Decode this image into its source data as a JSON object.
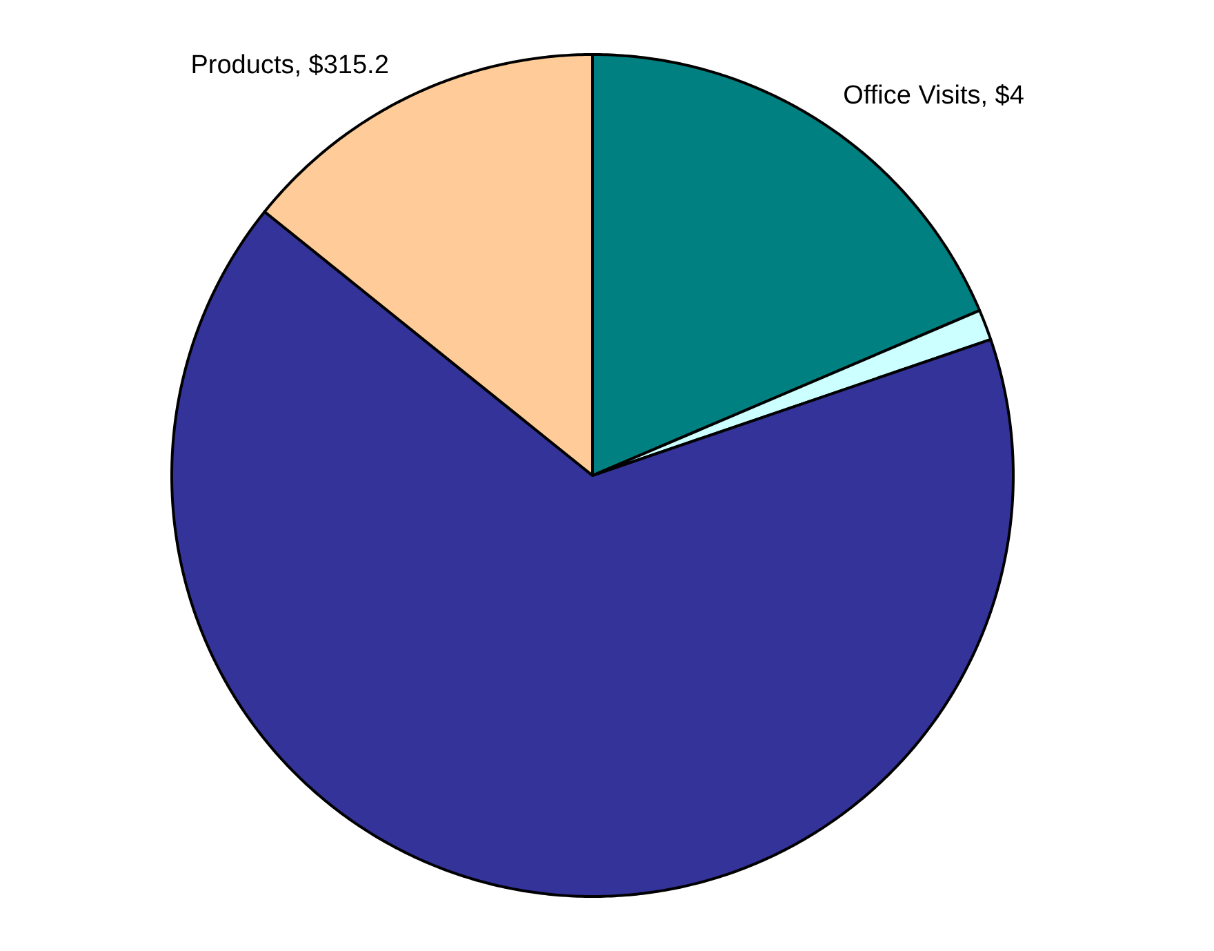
{
  "chart_data": {
    "type": "pie",
    "categories": [
      "Office Visits,  $4",
      null,
      null,
      "Products,  $315.2"
    ],
    "values": [
      412,
      26,
      1463,
      315.2
    ],
    "colors": [
      "#008080",
      "#ccffff",
      "#333399",
      "#ffcc99"
    ]
  }
}
